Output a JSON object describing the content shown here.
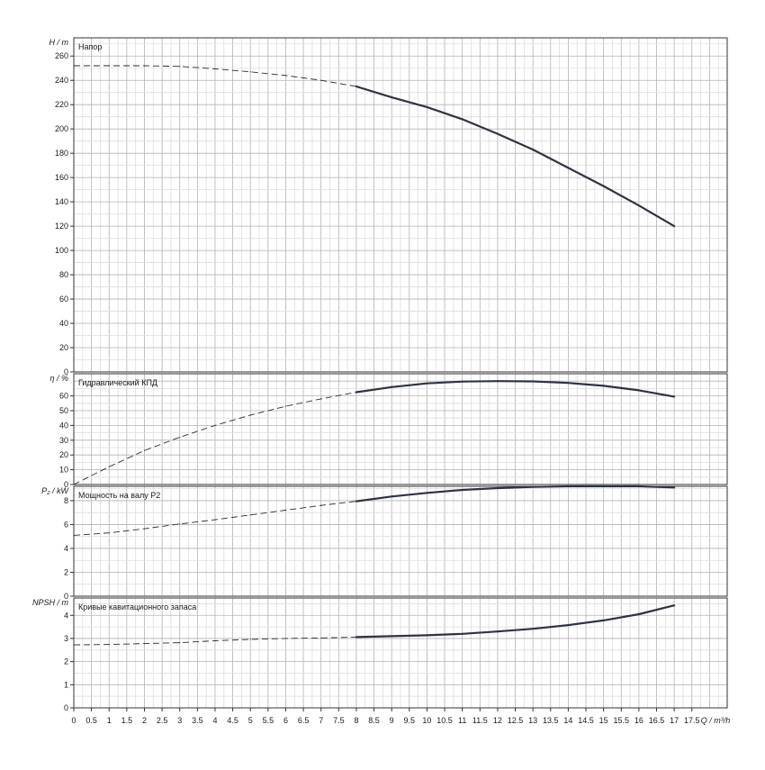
{
  "chart_data": {
    "type": "line",
    "x_unit_label": "Q / m³/h",
    "x_ticks": [
      "0",
      "0.5",
      "1",
      "1.5",
      "2",
      "2.5",
      "3",
      "3.5",
      "4",
      "4.5",
      "5",
      "5.5",
      "6",
      "6.5",
      "7",
      "7.5",
      "8",
      "8.5",
      "9",
      "9.5",
      "10",
      "10.5",
      "11",
      "11.5",
      "12",
      "12.5",
      "13",
      "13.5",
      "14",
      "14.5",
      "15",
      "15.5",
      "16",
      "16.5",
      "17",
      "17.5"
    ],
    "xlim": [
      0,
      18.5
    ],
    "grid": true,
    "panels": [
      {
        "title": "Напор",
        "ylabel": "H / m",
        "ylim": [
          0,
          275
        ],
        "y_ticks": [
          0,
          20,
          40,
          60,
          80,
          100,
          120,
          140,
          160,
          180,
          200,
          220,
          240,
          260
        ],
        "dashed": {
          "x": [
            0,
            1,
            2,
            3,
            4,
            5,
            6,
            7,
            8
          ],
          "y": [
            252,
            252,
            252,
            251.5,
            249.5,
            247,
            244,
            240,
            235
          ]
        },
        "solid": {
          "x": [
            8,
            9,
            10,
            11,
            12,
            13,
            14,
            15,
            16,
            17
          ],
          "y": [
            235,
            226,
            218,
            208,
            196,
            183,
            168,
            153,
            137,
            120
          ]
        }
      },
      {
        "title": "Гидравлический КПД",
        "ylabel": "η / %",
        "ylim": [
          0,
          75
        ],
        "y_ticks": [
          0,
          10,
          20,
          30,
          40,
          50,
          60
        ],
        "dashed": {
          "x": [
            0,
            1,
            2,
            3,
            4,
            5,
            6,
            7,
            8
          ],
          "y": [
            0,
            12,
            23,
            32,
            40,
            47,
            53,
            58,
            62.5
          ]
        },
        "solid": {
          "x": [
            8,
            9,
            10,
            11,
            12,
            13,
            14,
            15,
            16,
            17
          ],
          "y": [
            62.5,
            66,
            68.5,
            69.7,
            70,
            69.8,
            68.8,
            66.8,
            63.8,
            59.5
          ]
        }
      },
      {
        "title": "Мощность на валу P2",
        "ylabel": "P₂ / kW",
        "ylim": [
          0,
          9.2
        ],
        "y_ticks": [
          0,
          2,
          4,
          6,
          8
        ],
        "dashed": {
          "x": [
            0,
            1,
            2,
            3,
            4,
            5,
            6,
            7,
            8
          ],
          "y": [
            5.1,
            5.3,
            5.65,
            6.05,
            6.4,
            6.8,
            7.2,
            7.6,
            7.95
          ]
        },
        "solid": {
          "x": [
            8,
            9,
            10,
            11,
            12,
            13,
            14,
            15,
            16,
            17
          ],
          "y": [
            7.95,
            8.35,
            8.65,
            8.9,
            9.05,
            9.15,
            9.2,
            9.2,
            9.2,
            9.1
          ]
        }
      },
      {
        "title": "Кривые кавитационного запаса",
        "ylabel": "NPSH / m",
        "ylim": [
          0,
          4.75
        ],
        "y_ticks": [
          0,
          1,
          2,
          3,
          4
        ],
        "dashed": {
          "x": [
            0,
            1,
            2,
            3,
            4,
            5,
            6,
            7,
            8
          ],
          "y": [
            2.72,
            2.74,
            2.78,
            2.82,
            2.9,
            2.96,
            3.0,
            3.02,
            3.06
          ]
        },
        "solid": {
          "x": [
            8,
            9,
            10,
            11,
            12,
            13,
            14,
            15,
            16,
            17
          ],
          "y": [
            3.06,
            3.1,
            3.14,
            3.2,
            3.3,
            3.42,
            3.58,
            3.78,
            4.05,
            4.43
          ]
        }
      }
    ]
  }
}
